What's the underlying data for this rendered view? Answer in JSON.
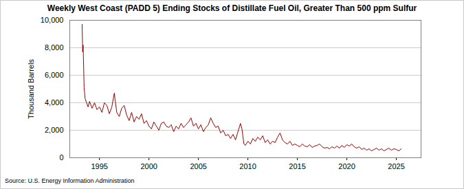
{
  "chart_data": {
    "type": "line",
    "title": "Weekly West Coast (PADD 5) Ending Stocks of Distillate Fuel Oil, Greater Than 500 ppm Sulfur",
    "y_label": "Thousand Barrels",
    "source": "Source: U.S. Energy Information Administration",
    "x": [
      1993.25,
      1993.3,
      1993.35,
      1993.45,
      1993.55,
      1993.7,
      1993.85,
      1994.0,
      1994.25,
      1994.5,
      1994.75,
      1995.0,
      1995.25,
      1995.5,
      1995.75,
      1996.0,
      1996.25,
      1996.5,
      1996.6,
      1996.75,
      1997.0,
      1997.25,
      1997.5,
      1997.75,
      1998.0,
      1998.25,
      1998.5,
      1998.75,
      1999.0,
      1999.25,
      1999.5,
      1999.75,
      2000.0,
      2000.25,
      2000.5,
      2000.75,
      2001.0,
      2001.25,
      2001.5,
      2001.75,
      2002.0,
      2002.25,
      2002.5,
      2002.75,
      2003.0,
      2003.25,
      2003.5,
      2003.75,
      2004.0,
      2004.25,
      2004.5,
      2004.75,
      2005.0,
      2005.25,
      2005.5,
      2005.75,
      2006.0,
      2006.25,
      2006.5,
      2006.75,
      2007.0,
      2007.25,
      2007.5,
      2007.75,
      2008.0,
      2008.25,
      2008.5,
      2008.75,
      2009.0,
      2009.25,
      2009.4,
      2009.6,
      2009.75,
      2010.0,
      2010.25,
      2010.5,
      2010.75,
      2011.0,
      2011.25,
      2011.5,
      2011.75,
      2012.0,
      2012.25,
      2012.5,
      2012.75,
      2013.0,
      2013.25,
      2013.5,
      2013.75,
      2014.0,
      2014.25,
      2014.5,
      2014.75,
      2015.0,
      2015.25,
      2015.5,
      2015.75,
      2016.0,
      2016.25,
      2016.5,
      2016.75,
      2017.0,
      2017.25,
      2017.5,
      2017.75,
      2018.0,
      2018.25,
      2018.5,
      2018.75,
      2019.0,
      2019.25,
      2019.5,
      2019.75,
      2020.0,
      2020.25,
      2020.5,
      2020.75,
      2021.0,
      2021.25,
      2021.5,
      2021.75,
      2022.0,
      2022.25,
      2022.5,
      2022.75,
      2023.0,
      2023.25,
      2023.5,
      2023.75,
      2024.0,
      2024.25,
      2024.5,
      2024.75,
      2025.0,
      2025.25,
      2025.5
    ],
    "values": [
      9700,
      7700,
      8200,
      5100,
      4300,
      4000,
      3700,
      4100,
      3600,
      4000,
      3500,
      3700,
      3300,
      4000,
      3800,
      3200,
      3700,
      4700,
      4100,
      3300,
      3000,
      3600,
      3800,
      3100,
      2700,
      3300,
      2600,
      3000,
      2800,
      3200,
      2500,
      2700,
      2300,
      2100,
      2600,
      2300,
      2000,
      2500,
      2600,
      2300,
      2200,
      2400,
      1900,
      2300,
      2100,
      2500,
      2200,
      2400,
      2600,
      2900,
      2300,
      2500,
      2100,
      2400,
      1900,
      2200,
      2400,
      2900,
      2500,
      2200,
      2300,
      1800,
      2000,
      1600,
      1700,
      1400,
      1700,
      1300,
      1900,
      2500,
      2100,
      1000,
      900,
      1200,
      1000,
      1400,
      1200,
      1500,
      1300,
      1600,
      1100,
      1300,
      1000,
      1200,
      1100,
      1500,
      1800,
      1300,
      1100,
      1000,
      1200,
      900,
      1000,
      900,
      800,
      1000,
      850,
      800,
      950,
      750,
      850,
      900,
      1000,
      800,
      700,
      750,
      650,
      800,
      700,
      850,
      700,
      900,
      750,
      950,
      850,
      1000,
      800,
      700,
      800,
      600,
      700,
      550,
      650,
      500,
      600,
      700,
      550,
      650,
      500,
      600,
      700,
      550,
      650,
      600,
      500,
      650
    ],
    "color": "#990000",
    "xlim": [
      1992,
      2027.5
    ],
    "xticks": [
      1995,
      2000,
      2005,
      2010,
      2015,
      2020,
      2025
    ],
    "ylim": [
      0,
      10000
    ],
    "yticks": [
      0,
      {
        "value": 2000,
        "label": "2,000"
      },
      {
        "value": 4000,
        "label": "4,000"
      },
      {
        "value": 6000,
        "label": "6,000"
      },
      {
        "value": 8000,
        "label": "8,000"
      },
      {
        "value": 10000,
        "label": "10,000"
      }
    ],
    "grid": true
  }
}
